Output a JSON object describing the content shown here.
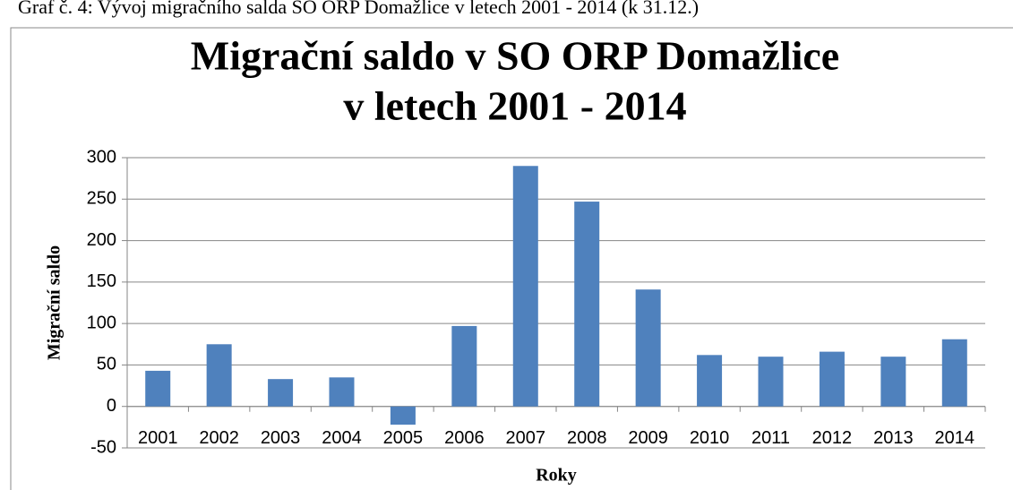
{
  "caption": "Graf č. 4: Vývoj migračního salda SO ORP Domažlice v letech 2001 - 2014 (k 31.12.)",
  "chart_data": {
    "type": "bar",
    "title": [
      "Migrační saldo v SO ORP Domažlice",
      "v letech 2001 - 2014"
    ],
    "x_label": "Roky",
    "y_label": "Migrační saldo",
    "categories": [
      "2001",
      "2002",
      "2003",
      "2004",
      "2005",
      "2006",
      "2007",
      "2008",
      "2009",
      "2010",
      "2011",
      "2012",
      "2013",
      "2014"
    ],
    "values": [
      43,
      75,
      33,
      35,
      -22,
      97,
      290,
      247,
      141,
      62,
      60,
      66,
      60,
      81
    ],
    "color": "#4f81bd",
    "ylim": [
      -50,
      300
    ],
    "yticks": [
      -50,
      0,
      50,
      100,
      150,
      200,
      250,
      300
    ],
    "grid": true
  }
}
